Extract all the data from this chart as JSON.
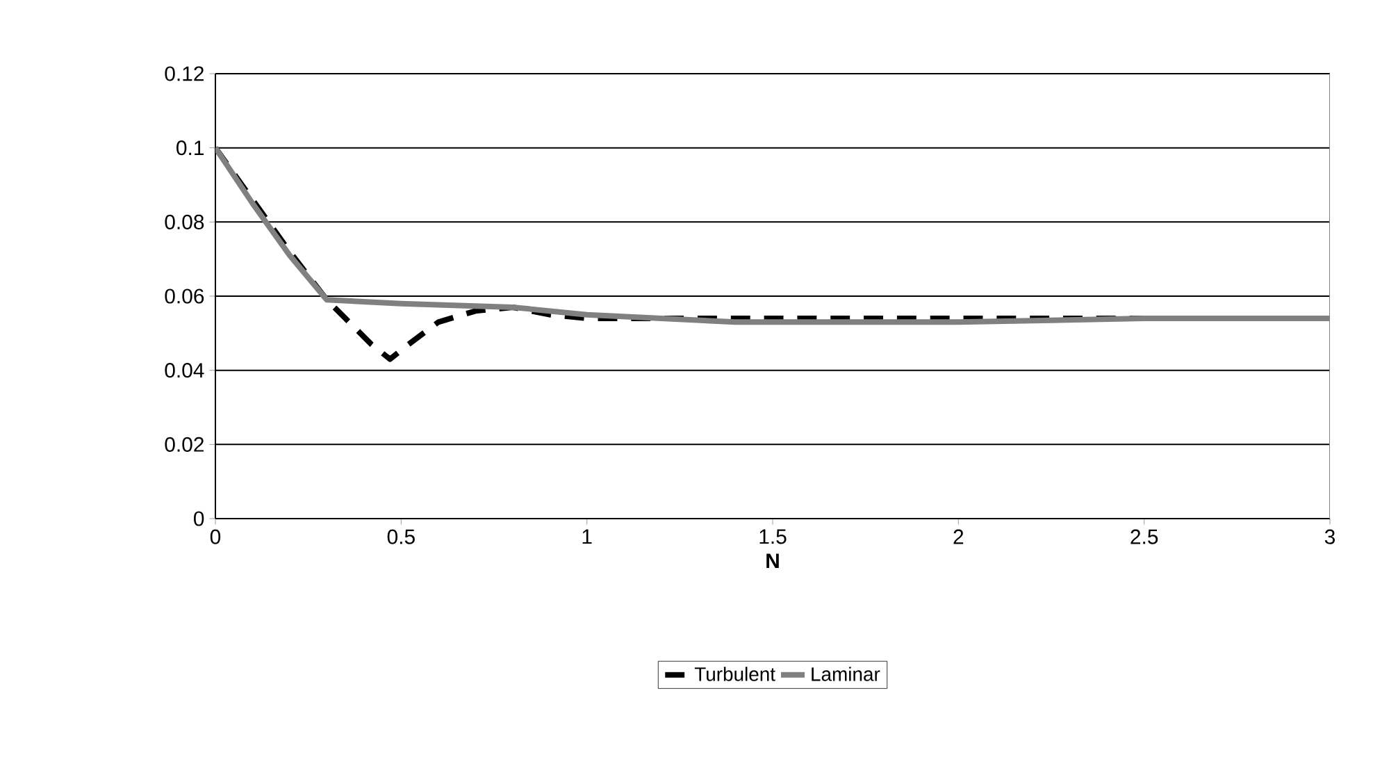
{
  "chart_data": {
    "type": "line",
    "xlabel": "N",
    "series": [
      {
        "name": "Turbulent",
        "color": "#000000",
        "line_style": "dashed",
        "x": [
          0,
          0.1,
          0.2,
          0.3,
          0.37,
          0.42,
          0.47,
          0.52,
          0.6,
          0.7,
          0.8,
          0.9,
          1.0,
          1.5,
          2.0,
          2.5
        ],
        "values": [
          0.1,
          0.086,
          0.072,
          0.059,
          0.052,
          0.047,
          0.043,
          0.047,
          0.053,
          0.056,
          0.057,
          0.055,
          0.054,
          0.054,
          0.054,
          0.054
        ]
      },
      {
        "name": "Laminar",
        "color": "#808080",
        "line_style": "solid",
        "x": [
          0,
          0.1,
          0.2,
          0.3,
          0.5,
          0.8,
          1.0,
          1.2,
          1.4,
          2.0,
          2.5,
          3.0
        ],
        "values": [
          0.1,
          0.085,
          0.071,
          0.059,
          0.058,
          0.057,
          0.055,
          0.054,
          0.053,
          0.053,
          0.054,
          0.054
        ]
      }
    ],
    "xlim": [
      0,
      3
    ],
    "xticks": [
      0,
      0.5,
      1,
      1.5,
      2,
      2.5,
      3
    ],
    "ylim": [
      0,
      0.12
    ],
    "yticks": [
      0,
      0.02,
      0.04,
      0.06,
      0.08,
      0.1,
      0.12
    ],
    "grid": "y",
    "legend": "bottom",
    "marker": "none"
  }
}
